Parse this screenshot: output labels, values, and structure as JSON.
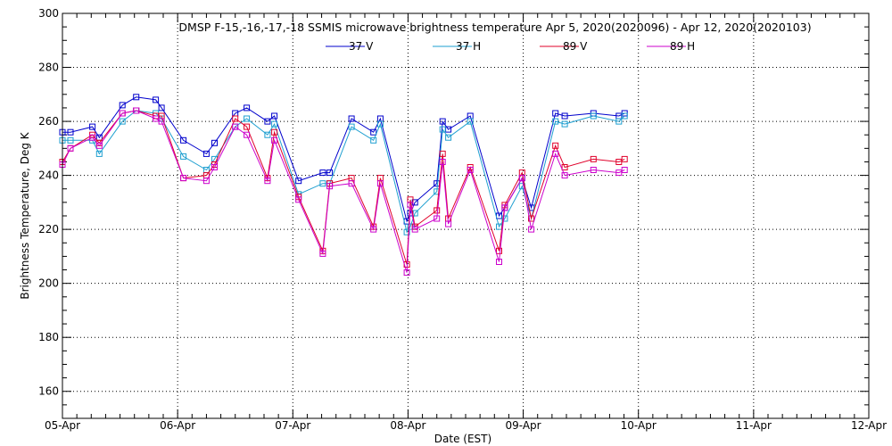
{
  "chart_data": {
    "type": "line",
    "title": "DMSP F-15,-16,-17,-18 SSMIS microwave brightness temperature Apr  5, 2020(2020096) - Apr 12, 2020(2020103)",
    "xlabel": "Date (EST)",
    "ylabel": "Brightness Temperature, Deg K",
    "xlim": [
      0,
      7
    ],
    "ylim": [
      150,
      300
    ],
    "x_ticks": [
      0,
      1,
      2,
      3,
      4,
      5,
      6,
      7
    ],
    "x_tick_labels": [
      "05-Apr",
      "06-Apr",
      "07-Apr",
      "08-Apr",
      "09-Apr",
      "10-Apr",
      "11-Apr",
      "12-Apr"
    ],
    "y_ticks": [
      160,
      180,
      200,
      220,
      240,
      260,
      280,
      300
    ],
    "y_tick_labels": [
      "160",
      "180",
      "200",
      "220",
      "240",
      "260",
      "280",
      "300"
    ],
    "grid": true,
    "legend_position": "top",
    "x": [
      0.0,
      0.07,
      0.26,
      0.32,
      0.52,
      0.64,
      0.81,
      0.86,
      1.05,
      1.25,
      1.32,
      1.5,
      1.6,
      1.78,
      1.84,
      2.05,
      2.26,
      2.32,
      2.51,
      2.7,
      2.76,
      2.99,
      3.02,
      3.06,
      3.25,
      3.3,
      3.35,
      3.54,
      3.79,
      3.84,
      3.99,
      4.07,
      4.28,
      4.36,
      4.61,
      4.83,
      4.88
    ],
    "series": [
      {
        "name": "37 V",
        "color": "#0000cc",
        "values": [
          256,
          256,
          258,
          254,
          266,
          269,
          268,
          265,
          253,
          248,
          252,
          263,
          265,
          260,
          262,
          238,
          241,
          241,
          261,
          256,
          261,
          223,
          226,
          230,
          237,
          260,
          257,
          262,
          225,
          228,
          239,
          228,
          263,
          262,
          263,
          262,
          263
        ]
      },
      {
        "name": "37 H",
        "color": "#1e9fd0",
        "values": [
          253,
          253,
          253,
          248,
          260,
          264,
          263,
          261,
          247,
          242,
          246,
          258,
          261,
          255,
          259,
          233,
          237,
          237,
          258,
          253,
          259,
          219,
          221,
          226,
          234,
          257,
          254,
          260,
          221,
          224,
          236,
          224,
          260,
          259,
          262,
          260,
          262
        ]
      },
      {
        "name": "89 V",
        "color": "#e0002a",
        "values": [
          245,
          250,
          255,
          252,
          263,
          264,
          262,
          262,
          239,
          240,
          244,
          261,
          258,
          239,
          256,
          232,
          212,
          237,
          239,
          221,
          239,
          207,
          231,
          221,
          227,
          248,
          224,
          243,
          212,
          229,
          241,
          224,
          251,
          243,
          246,
          245,
          246
        ]
      },
      {
        "name": "89 H",
        "color": "#cc00cc",
        "values": [
          244,
          250,
          254,
          251,
          263,
          264,
          261,
          260,
          239,
          238,
          243,
          258,
          255,
          238,
          253,
          231,
          211,
          236,
          237,
          220,
          237,
          204,
          229,
          220,
          224,
          245,
          222,
          242,
          208,
          228,
          239,
          220,
          248,
          240,
          242,
          241,
          242
        ]
      }
    ]
  }
}
